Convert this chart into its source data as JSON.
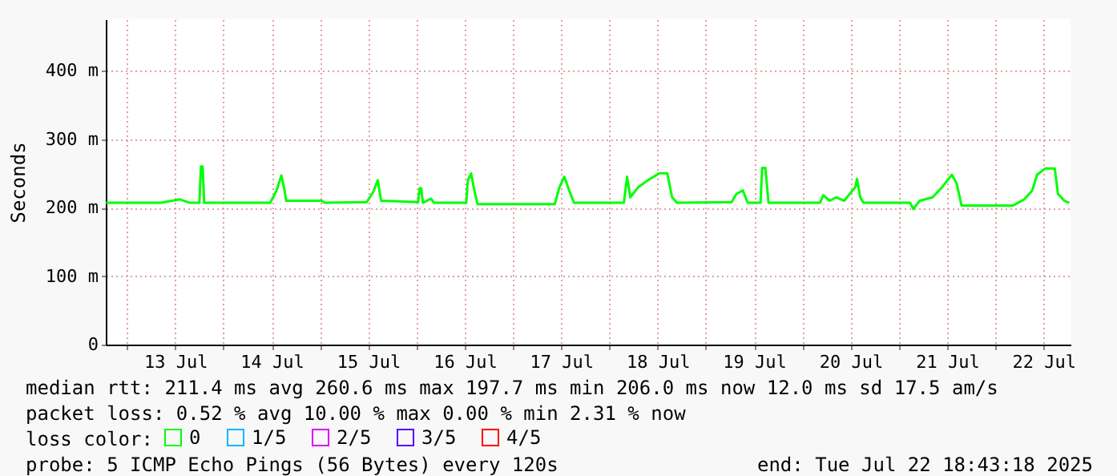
{
  "chart_data": {
    "type": "line",
    "ylabel": "Seconds",
    "x": [
      "2025-07-12T18:48",
      "2025-07-13T08:24",
      "2025-07-13T13:12",
      "2025-07-13T15:36",
      "2025-07-13T18:00",
      "2025-07-13T18:24",
      "2025-07-13T18:48",
      "2025-07-13T19:12",
      "2025-07-14T11:36",
      "2025-07-14T13:12",
      "2025-07-14T14:24",
      "2025-07-14T15:12",
      "2025-07-14T15:36",
      "2025-07-15T00:24",
      "2025-07-15T01:12",
      "2025-07-15T11:36",
      "2025-07-15T13:12",
      "2025-07-15T14:24",
      "2025-07-15T15:12",
      "2025-07-16T00:24",
      "2025-07-16T00:48",
      "2025-07-16T01:12",
      "2025-07-16T01:36",
      "2025-07-16T03:36",
      "2025-07-16T04:24",
      "2025-07-16T12:24",
      "2025-07-16T12:48",
      "2025-07-16T13:36",
      "2025-07-16T14:24",
      "2025-07-16T15:12",
      "2025-07-17T10:24",
      "2025-07-17T11:36",
      "2025-07-17T12:48",
      "2025-07-17T14:00",
      "2025-07-17T15:12",
      "2025-07-18T03:36",
      "2025-07-18T04:24",
      "2025-07-18T05:12",
      "2025-07-18T07:12",
      "2025-07-18T09:36",
      "2025-07-18T12:24",
      "2025-07-18T14:24",
      "2025-07-18T15:36",
      "2025-07-18T16:48",
      "2025-07-19T06:24",
      "2025-07-19T07:36",
      "2025-07-19T09:12",
      "2025-07-19T10:24",
      "2025-07-19T13:36",
      "2025-07-19T14:00",
      "2025-07-19T14:48",
      "2025-07-19T15:36",
      "2025-07-20T04:24",
      "2025-07-20T05:12",
      "2025-07-20T06:48",
      "2025-07-20T08:24",
      "2025-07-20T10:24",
      "2025-07-20T13:12",
      "2025-07-20T13:36",
      "2025-07-20T14:24",
      "2025-07-20T15:12",
      "2025-07-21T02:48",
      "2025-07-21T03:36",
      "2025-07-21T05:12",
      "2025-07-21T08:24",
      "2025-07-21T10:48",
      "2025-07-21T13:12",
      "2025-07-21T14:24",
      "2025-07-21T15:36",
      "2025-07-22T04:24",
      "2025-07-22T07:12",
      "2025-07-22T09:12",
      "2025-07-22T10:24",
      "2025-07-22T12:24",
      "2025-07-22T14:48",
      "2025-07-22T15:36",
      "2025-07-22T17:12",
      "2025-07-22T18:24"
    ],
    "series": [
      {
        "name": "0",
        "color": "#00ff00",
        "values": [
          207,
          207,
          212,
          207,
          207,
          260,
          260,
          207,
          207,
          225,
          247,
          225,
          210,
          210,
          207,
          208,
          222,
          240,
          210,
          208,
          228,
          228,
          207,
          213,
          207,
          207,
          240,
          250,
          225,
          205,
          205,
          230,
          245,
          225,
          207,
          207,
          245,
          215,
          230,
          240,
          250,
          250,
          215,
          207,
          208,
          220,
          225,
          207,
          207,
          258,
          258,
          207,
          207,
          218,
          210,
          215,
          210,
          230,
          242,
          215,
          207,
          207,
          198,
          210,
          215,
          230,
          248,
          235,
          203,
          203,
          212,
          225,
          248,
          257,
          257,
          220,
          210,
          207
        ]
      },
      {
        "name": "1/5",
        "color": "#00b7ff",
        "values": [
          null,
          null,
          null,
          null,
          null,
          null,
          null,
          null,
          null,
          null,
          null,
          null,
          null,
          null,
          null,
          null,
          null,
          null,
          null,
          null,
          null,
          null,
          null,
          null,
          null,
          null,
          null,
          null,
          null,
          null,
          null,
          null,
          null,
          null,
          null,
          null,
          null,
          null,
          null,
          null,
          null,
          null,
          null,
          null,
          null,
          null,
          null,
          null,
          null,
          null,
          null,
          null,
          null,
          null,
          null,
          null,
          null,
          null,
          null,
          null,
          null,
          null,
          null,
          null,
          null,
          null,
          null,
          null,
          null,
          null,
          null,
          null,
          null,
          null,
          null,
          null,
          null,
          null
        ]
      },
      {
        "name": "2/5",
        "color": "#dd00ff",
        "values": [
          null,
          null,
          null,
          null,
          null,
          null,
          null,
          null,
          null,
          null,
          null,
          null,
          null,
          null,
          null,
          null,
          null,
          null,
          null,
          null,
          null,
          null,
          null,
          null,
          null,
          null,
          null,
          null,
          null,
          null,
          null,
          null,
          null,
          null,
          null,
          null,
          null,
          null,
          null,
          null,
          null,
          null,
          null,
          null,
          null,
          null,
          null,
          null,
          null,
          null,
          null,
          null,
          null,
          null,
          null,
          null,
          null,
          null,
          null,
          null,
          null,
          null,
          null,
          null,
          null,
          null,
          null,
          null,
          null,
          null,
          null,
          null,
          null,
          null,
          null,
          null,
          null,
          null
        ]
      },
      {
        "name": "3/5",
        "color": "#5500ff",
        "values": [
          null,
          null,
          null,
          null,
          null,
          null,
          null,
          null,
          null,
          null,
          null,
          null,
          null,
          null,
          null,
          null,
          null,
          null,
          null,
          null,
          null,
          null,
          null,
          null,
          null,
          null,
          null,
          null,
          null,
          null,
          null,
          null,
          null,
          null,
          null,
          null,
          null,
          null,
          null,
          null,
          null,
          null,
          null,
          null,
          null,
          null,
          null,
          null,
          null,
          null,
          null,
          null,
          null,
          null,
          null,
          null,
          null,
          null,
          null,
          null,
          null,
          null,
          null,
          null,
          null,
          null,
          null,
          null,
          null,
          null,
          null,
          null,
          null,
          null,
          null,
          null,
          null,
          null
        ]
      },
      {
        "name": "4/5",
        "color": "#ff0000",
        "values": [
          null,
          null,
          null,
          null,
          null,
          null,
          null,
          null,
          null,
          null,
          null,
          null,
          null,
          null,
          null,
          null,
          null,
          null,
          null,
          null,
          null,
          null,
          null,
          null,
          null,
          null,
          null,
          null,
          null,
          null,
          null,
          null,
          null,
          null,
          null,
          null,
          null,
          null,
          null,
          null,
          null,
          null,
          null,
          null,
          null,
          null,
          null,
          null,
          null,
          null,
          null,
          null,
          null,
          null,
          null,
          null,
          null,
          null,
          null,
          null,
          null,
          null,
          null,
          null,
          null,
          null,
          null,
          null,
          null,
          null,
          null,
          null,
          null,
          null,
          null,
          null,
          null,
          null
        ]
      }
    ],
    "legend_title": "loss color:",
    "legend": "bottom",
    "xlim": [
      "2025-07-12T18:43",
      "2025-07-22T18:43"
    ],
    "xticks": [
      {
        "value": "2025-07-13T00:00",
        "label": null
      },
      {
        "value": "2025-07-13T12:00",
        "label": "13 Jul"
      },
      {
        "value": "2025-07-14T00:00",
        "label": null
      },
      {
        "value": "2025-07-14T12:00",
        "label": "14 Jul"
      },
      {
        "value": "2025-07-15T00:00",
        "label": null
      },
      {
        "value": "2025-07-15T12:00",
        "label": "15 Jul"
      },
      {
        "value": "2025-07-16T00:00",
        "label": null
      },
      {
        "value": "2025-07-16T12:00",
        "label": "16 Jul"
      },
      {
        "value": "2025-07-17T00:00",
        "label": null
      },
      {
        "value": "2025-07-17T12:00",
        "label": "17 Jul"
      },
      {
        "value": "2025-07-18T00:00",
        "label": null
      },
      {
        "value": "2025-07-18T12:00",
        "label": "18 Jul"
      },
      {
        "value": "2025-07-19T00:00",
        "label": null
      },
      {
        "value": "2025-07-19T12:00",
        "label": "19 Jul"
      },
      {
        "value": "2025-07-20T00:00",
        "label": null
      },
      {
        "value": "2025-07-20T12:00",
        "label": "20 Jul"
      },
      {
        "value": "2025-07-21T00:00",
        "label": null
      },
      {
        "value": "2025-07-21T12:00",
        "label": "21 Jul"
      },
      {
        "value": "2025-07-22T00:00",
        "label": null
      },
      {
        "value": "2025-07-22T12:00",
        "label": "22 Jul"
      }
    ],
    "ylim": [
      0,
      475
    ],
    "yticks": [
      0,
      {
        "value": 100,
        "label": "100 m"
      },
      {
        "value": 200,
        "label": "200 m"
      },
      {
        "value": 300,
        "label": "300 m"
      },
      {
        "value": 400,
        "label": "400 m"
      }
    ],
    "grid": true,
    "marker": "none",
    "line_style": "solid",
    "annotations": [
      "median rtt:  211.4 ms avg  260.6 ms max  197.7 ms min  206.0 ms now  12.0 ms sd  17.5   am/s",
      "packet loss: 0.52 % avg  10.00 % max  0.00 % min  2.31 % now",
      "probe:       5 ICMP Echo Pings (56 Bytes) every 120s",
      "end: Tue Jul 22 18:43:18 2025"
    ]
  }
}
